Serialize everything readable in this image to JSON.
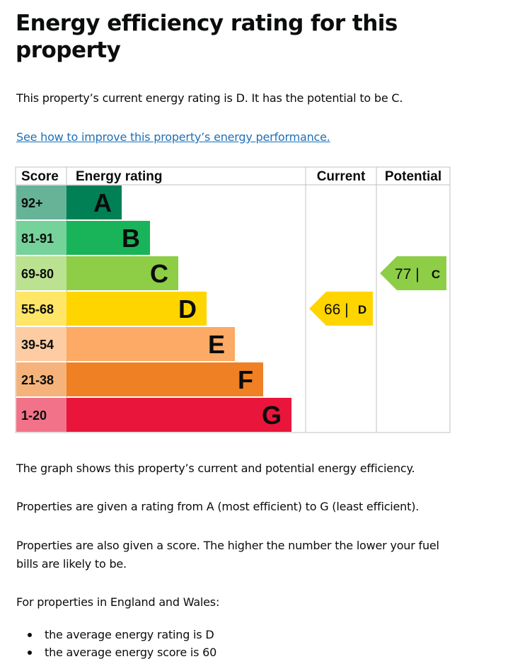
{
  "page": {
    "title": "Energy efficiency rating for this property",
    "summary": "This property’s current energy rating is D. It has the potential to be C.",
    "improve_link": "See how to improve this property’s energy performance.",
    "para_graph": "The graph shows this property’s current and potential energy efficiency.",
    "para_rating": "Properties are given a rating from A (most efficient) to G (least efficient).",
    "para_score_1": "Properties are also given a score. The higher the number the lower your fuel",
    "para_score_2": "bills are likely to be.",
    "para_region": "For properties in England and Wales:",
    "bullets": [
      "the average energy rating is D",
      "the average energy score is 60"
    ]
  },
  "chart_data": {
    "type": "table",
    "headers": [
      "Score",
      "Energy rating",
      "Current",
      "Potential"
    ],
    "bands": [
      {
        "score": "92+",
        "rating": "A",
        "color": "#008054",
        "score_bg": "#66b398"
      },
      {
        "score": "81-91",
        "rating": "B",
        "color": "#19b459",
        "score_bg": "#75d29b"
      },
      {
        "score": "69-80",
        "rating": "C",
        "color": "#8dce46",
        "score_bg": "#bbe290"
      },
      {
        "score": "55-68",
        "rating": "D",
        "color": "#ffd500",
        "score_bg": "#ffe666"
      },
      {
        "score": "39-54",
        "rating": "E",
        "color": "#fcaa65",
        "score_bg": "#fdcca3"
      },
      {
        "score": "21-38",
        "rating": "F",
        "color": "#ef8023",
        "score_bg": "#f5b37b"
      },
      {
        "score": "1-20",
        "rating": "G",
        "color": "#e9153b",
        "score_bg": "#f27389"
      }
    ],
    "current": {
      "score": 66,
      "rating": "D",
      "label": "66 |",
      "color": "#ffd500"
    },
    "potential": {
      "score": 77,
      "rating": "C",
      "label": "77 |",
      "color": "#8dce46"
    }
  }
}
